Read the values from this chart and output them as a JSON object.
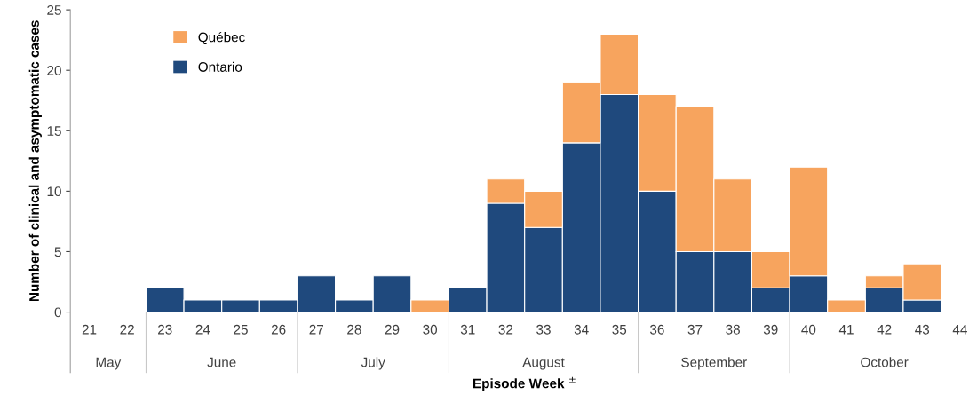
{
  "chart_data": {
    "type": "bar",
    "stacked": true,
    "xlabel": "Episode Week $^{±}$",
    "ylabel": "Number of clinical and asymptomatic cases",
    "categories": [
      "21",
      "22",
      "23",
      "24",
      "25",
      "26",
      "27",
      "28",
      "29",
      "30",
      "31",
      "32",
      "33",
      "34",
      "35",
      "36",
      "37",
      "38",
      "39",
      "40",
      "41",
      "42",
      "43",
      "44"
    ],
    "series": [
      {
        "name": "Ontario",
        "color": "#1f497d",
        "values": [
          0,
          0,
          2,
          1,
          1,
          1,
          3,
          1,
          3,
          0,
          2,
          9,
          7,
          14,
          18,
          10,
          5,
          5,
          2,
          3,
          0,
          2,
          1,
          0
        ]
      },
      {
        "name": "Québec",
        "color": "#f7a45e",
        "values": [
          0,
          0,
          0,
          0,
          0,
          0,
          0,
          0,
          0,
          1,
          0,
          2,
          3,
          5,
          5,
          8,
          12,
          6,
          3,
          9,
          1,
          1,
          3,
          0
        ]
      }
    ],
    "ylim": [
      0,
      25
    ],
    "yticks": [
      0,
      5,
      10,
      15,
      20,
      25
    ],
    "annotations": [
      "May",
      "June",
      "July",
      "August",
      "September",
      "October"
    ],
    "legend": "top left",
    "grid": false
  }
}
